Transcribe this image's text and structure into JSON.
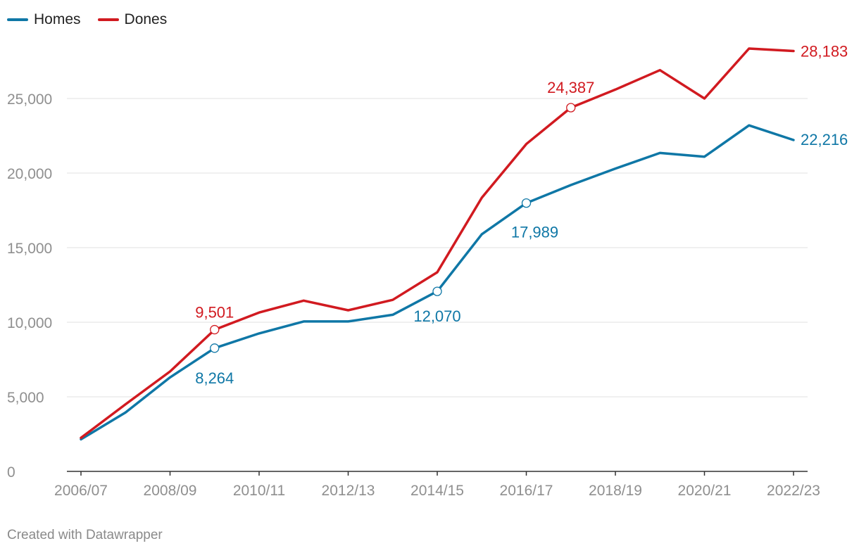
{
  "chart_data": {
    "type": "line",
    "title": "",
    "xlabel": "",
    "ylabel": "",
    "x": [
      "2006/07",
      "2007/08",
      "2008/09",
      "2009/10",
      "2010/11",
      "2011/12",
      "2012/13",
      "2013/14",
      "2014/15",
      "2015/16",
      "2016/17",
      "2017/18",
      "2018/19",
      "2019/20",
      "2020/21",
      "2021/22",
      "2022/23"
    ],
    "x_tick_labels": [
      "2006/07",
      "2008/09",
      "2010/11",
      "2012/13",
      "2014/15",
      "2016/17",
      "2018/19",
      "2020/21",
      "2022/23"
    ],
    "ylim": [
      0,
      28000
    ],
    "y_ticks": [
      0,
      5000,
      10000,
      15000,
      20000,
      25000
    ],
    "y_tick_labels": [
      "0",
      "5,000",
      "10,000",
      "15,000",
      "20,000",
      "25,000"
    ],
    "grid": true,
    "legend_position": "top-left",
    "series": [
      {
        "name": "Homes",
        "color": "#0f77a6",
        "values": [
          2150,
          3950,
          6300,
          8264,
          9250,
          10050,
          10050,
          10500,
          12070,
          15900,
          17989,
          19200,
          20300,
          21350,
          21100,
          23200,
          22216
        ],
        "annotations": [
          {
            "index": 3,
            "label": "8,264"
          },
          {
            "index": 8,
            "label": "12,070"
          },
          {
            "index": 10,
            "label": "17,989"
          },
          {
            "index": 16,
            "label": "22,216"
          }
        ]
      },
      {
        "name": "Dones",
        "color": "#d11a20",
        "values": [
          2250,
          4500,
          6700,
          9501,
          10650,
          11450,
          10800,
          11500,
          13350,
          18350,
          21950,
          24387,
          25600,
          26900,
          25000,
          28350,
          28183
        ],
        "annotations": [
          {
            "index": 3,
            "label": "9,501"
          },
          {
            "index": 11,
            "label": "24,387"
          },
          {
            "index": 16,
            "label": "28,183"
          }
        ]
      }
    ]
  },
  "legend": {
    "items": [
      {
        "label": "Homes",
        "color": "#0f77a6"
      },
      {
        "label": "Dones",
        "color": "#d11a20"
      }
    ]
  },
  "footer": {
    "credit": "Created with Datawrapper"
  }
}
